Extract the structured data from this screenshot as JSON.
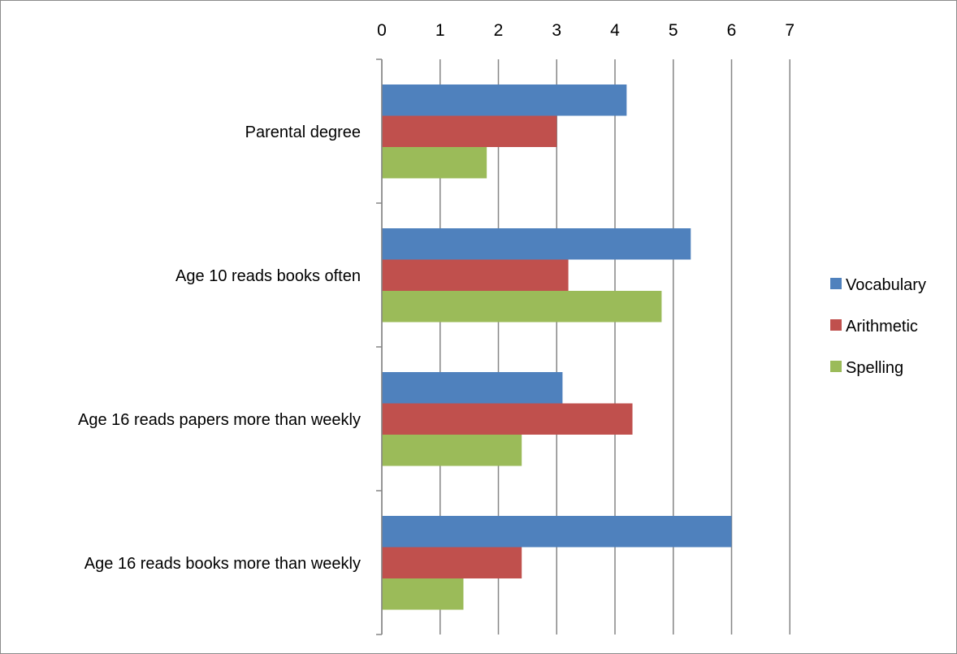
{
  "chart_data": {
    "type": "bar",
    "orientation": "horizontal",
    "title": "",
    "xlabel": "",
    "ylabel": "",
    "xlim": [
      0,
      7
    ],
    "x_ticks": [
      "0",
      "1",
      "2",
      "3",
      "4",
      "5",
      "6",
      "7"
    ],
    "x_axis_position": "top",
    "grid": true,
    "legend_position": "right",
    "categories": [
      "Parental degree",
      "Age 10 reads books often",
      "Age 16 reads papers more than weekly",
      "Age 16 reads books more than weekly"
    ],
    "series": [
      {
        "name": "Vocabulary",
        "color": "#4F81BD",
        "values": [
          4.2,
          5.3,
          3.1,
          6.0
        ]
      },
      {
        "name": "Arithmetic",
        "color": "#C0504D",
        "values": [
          3.0,
          3.2,
          4.3,
          2.4
        ]
      },
      {
        "name": "Spelling",
        "color": "#9BBB59",
        "values": [
          1.8,
          4.8,
          2.4,
          1.4
        ]
      }
    ]
  }
}
